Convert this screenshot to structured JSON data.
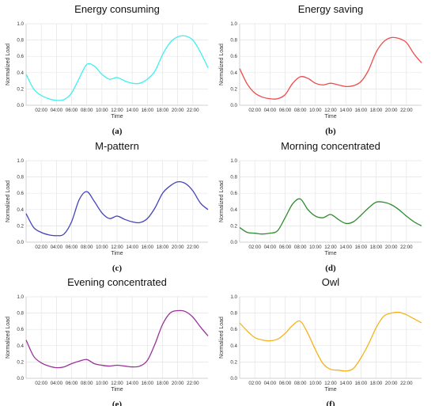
{
  "figure": {
    "background": "#ffffff",
    "grid_color": "#e4e4e4",
    "axis_color": "#c8c8c8"
  },
  "chart_data": [
    {
      "type": "line",
      "panel_label": "(a)",
      "title": "Energy consuming",
      "xlabel": "Time",
      "ylabel": "Normalized Load",
      "ylim": [
        0,
        1.0
      ],
      "yticks": [
        "0.0",
        "0.2",
        "0.4",
        "0.6",
        "0.8",
        "1.0"
      ],
      "xticks": [
        "02:00",
        "04:00",
        "06:00",
        "08:00",
        "10:00",
        "12:00",
        "14:00",
        "16:00",
        "18:00",
        "20:00",
        "22:00"
      ],
      "grid": true,
      "color": "#3ff0ee",
      "x": [
        0,
        1,
        2,
        3,
        4,
        5,
        6,
        7,
        8,
        9,
        10,
        11,
        12,
        13,
        14,
        15,
        16,
        17,
        18,
        19,
        20,
        21,
        22,
        23,
        24
      ],
      "values": [
        0.38,
        0.2,
        0.12,
        0.08,
        0.06,
        0.07,
        0.15,
        0.33,
        0.5,
        0.48,
        0.38,
        0.32,
        0.34,
        0.3,
        0.27,
        0.27,
        0.32,
        0.42,
        0.62,
        0.77,
        0.84,
        0.85,
        0.8,
        0.65,
        0.46
      ]
    },
    {
      "type": "line",
      "panel_label": "(b)",
      "title": "Energy saving",
      "xlabel": "Time",
      "ylabel": "Normalized Load",
      "ylim": [
        0,
        1.0
      ],
      "yticks": [
        "0.0",
        "0.2",
        "0.4",
        "0.6",
        "0.8",
        "1.0"
      ],
      "xticks": [
        "02:00",
        "04:00",
        "06:00",
        "08:00",
        "10:00",
        "12:00",
        "14:00",
        "16:00",
        "18:00",
        "20:00",
        "22:00"
      ],
      "grid": true,
      "color": "#ef4a4a",
      "x": [
        0,
        1,
        2,
        3,
        4,
        5,
        6,
        7,
        8,
        9,
        10,
        11,
        12,
        13,
        14,
        15,
        16,
        17,
        18,
        19,
        20,
        21,
        22,
        23,
        24
      ],
      "values": [
        0.45,
        0.26,
        0.15,
        0.1,
        0.08,
        0.08,
        0.13,
        0.27,
        0.35,
        0.33,
        0.27,
        0.25,
        0.27,
        0.25,
        0.23,
        0.24,
        0.29,
        0.43,
        0.65,
        0.78,
        0.83,
        0.82,
        0.77,
        0.63,
        0.52
      ]
    },
    {
      "type": "line",
      "panel_label": "(c)",
      "title": "M-pattern",
      "xlabel": "Time",
      "ylabel": "Normalized Load",
      "ylim": [
        0,
        1.0
      ],
      "yticks": [
        "0.0",
        "0.2",
        "0.4",
        "0.6",
        "0.8",
        "1.0"
      ],
      "xticks": [
        "02:00",
        "04:00",
        "06:00",
        "08:00",
        "10:00",
        "12:00",
        "14:00",
        "16:00",
        "18:00",
        "20:00",
        "22:00"
      ],
      "grid": true,
      "color": "#4444bb",
      "x": [
        0,
        1,
        2,
        3,
        4,
        5,
        6,
        7,
        8,
        9,
        10,
        11,
        12,
        13,
        14,
        15,
        16,
        17,
        18,
        19,
        20,
        21,
        22,
        23,
        24
      ],
      "values": [
        0.35,
        0.18,
        0.12,
        0.09,
        0.08,
        0.1,
        0.25,
        0.52,
        0.62,
        0.5,
        0.36,
        0.29,
        0.32,
        0.28,
        0.25,
        0.24,
        0.29,
        0.42,
        0.6,
        0.69,
        0.74,
        0.72,
        0.63,
        0.48,
        0.4
      ]
    },
    {
      "type": "line",
      "panel_label": "(d)",
      "title": "Morning concentrated",
      "xlabel": "Time",
      "ylabel": "Normalized Load",
      "ylim": [
        0,
        1.0
      ],
      "yticks": [
        "0.0",
        "0.2",
        "0.4",
        "0.6",
        "0.8",
        "1.0"
      ],
      "xticks": [
        "02:00",
        "04:00",
        "06:00",
        "08:00",
        "10:00",
        "12:00",
        "14:00",
        "16:00",
        "18:00",
        "20:00",
        "22:00"
      ],
      "grid": true,
      "color": "#2e8b2e",
      "x": [
        0,
        1,
        2,
        3,
        4,
        5,
        6,
        7,
        8,
        9,
        10,
        11,
        12,
        13,
        14,
        15,
        16,
        17,
        18,
        19,
        20,
        21,
        22,
        23,
        24
      ],
      "values": [
        0.18,
        0.12,
        0.11,
        0.1,
        0.11,
        0.14,
        0.3,
        0.47,
        0.53,
        0.4,
        0.32,
        0.3,
        0.34,
        0.28,
        0.23,
        0.25,
        0.33,
        0.42,
        0.49,
        0.49,
        0.46,
        0.4,
        0.32,
        0.25,
        0.2
      ]
    },
    {
      "type": "line",
      "panel_label": "(e)",
      "title": "Evening concentrated",
      "xlabel": "Time",
      "ylabel": "Normalized Load",
      "ylim": [
        0,
        1.0
      ],
      "yticks": [
        "0.0",
        "0.2",
        "0.4",
        "0.6",
        "0.8",
        "1.0"
      ],
      "xticks": [
        "02:00",
        "04:00",
        "06:00",
        "08:00",
        "10:00",
        "12:00",
        "14:00",
        "16:00",
        "18:00",
        "20:00",
        "22:00"
      ],
      "grid": true,
      "color": "#993399",
      "x": [
        0,
        1,
        2,
        3,
        4,
        5,
        6,
        7,
        8,
        9,
        10,
        11,
        12,
        13,
        14,
        15,
        16,
        17,
        18,
        19,
        20,
        21,
        22,
        23,
        24
      ],
      "values": [
        0.47,
        0.27,
        0.19,
        0.15,
        0.13,
        0.14,
        0.18,
        0.21,
        0.23,
        0.18,
        0.16,
        0.15,
        0.16,
        0.15,
        0.14,
        0.15,
        0.22,
        0.42,
        0.66,
        0.8,
        0.83,
        0.82,
        0.75,
        0.63,
        0.52
      ]
    },
    {
      "type": "line",
      "panel_label": "(f)",
      "title": "Owl",
      "xlabel": "Time",
      "ylabel": "Normalized Load",
      "ylim": [
        0,
        1.0
      ],
      "yticks": [
        "0.0",
        "0.2",
        "0.4",
        "0.6",
        "0.8",
        "1.0"
      ],
      "xticks": [
        "02:00",
        "04:00",
        "06:00",
        "08:00",
        "10:00",
        "12:00",
        "14:00",
        "16:00",
        "18:00",
        "20:00",
        "22:00"
      ],
      "grid": true,
      "color": "#f5b21c",
      "x": [
        0,
        1,
        2,
        3,
        4,
        5,
        6,
        7,
        8,
        9,
        10,
        11,
        12,
        13,
        14,
        15,
        16,
        17,
        18,
        19,
        20,
        21,
        22,
        23,
        24
      ],
      "values": [
        0.68,
        0.58,
        0.5,
        0.47,
        0.46,
        0.48,
        0.55,
        0.65,
        0.7,
        0.55,
        0.35,
        0.18,
        0.11,
        0.1,
        0.09,
        0.12,
        0.25,
        0.42,
        0.62,
        0.76,
        0.8,
        0.81,
        0.78,
        0.73,
        0.68
      ]
    }
  ]
}
